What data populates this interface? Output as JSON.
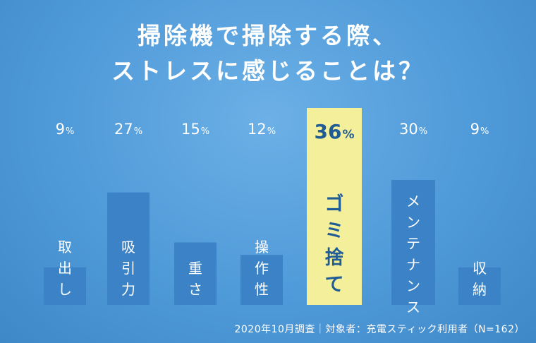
{
  "title_lines": [
    "掃除機で掃除する際、",
    "ストレスに感じることは？"
  ],
  "footnote": "2020年10月調査｜対象者：充電スティック利用者（N=162）",
  "colors": {
    "bar": "#3b83c6",
    "highlight_bar": "#f3ef9a",
    "label": "#ffffff",
    "highlight_text": "#1f5c96"
  },
  "chart_data": {
    "type": "bar",
    "title": "掃除機で掃除する際、ストレスに感じることは？",
    "categories": [
      "取出し",
      "吸引力",
      "重さ",
      "操作性",
      "ゴミ捨て",
      "メンテナンス",
      "収納"
    ],
    "values": [
      9,
      27,
      15,
      12,
      36,
      30,
      9
    ],
    "value_labels": [
      "9",
      "27",
      "15",
      "12",
      "36",
      "30",
      "9"
    ],
    "unit": "%",
    "highlight_index": 4,
    "ylim": [
      0,
      40
    ],
    "grid": false,
    "legend": "none"
  }
}
